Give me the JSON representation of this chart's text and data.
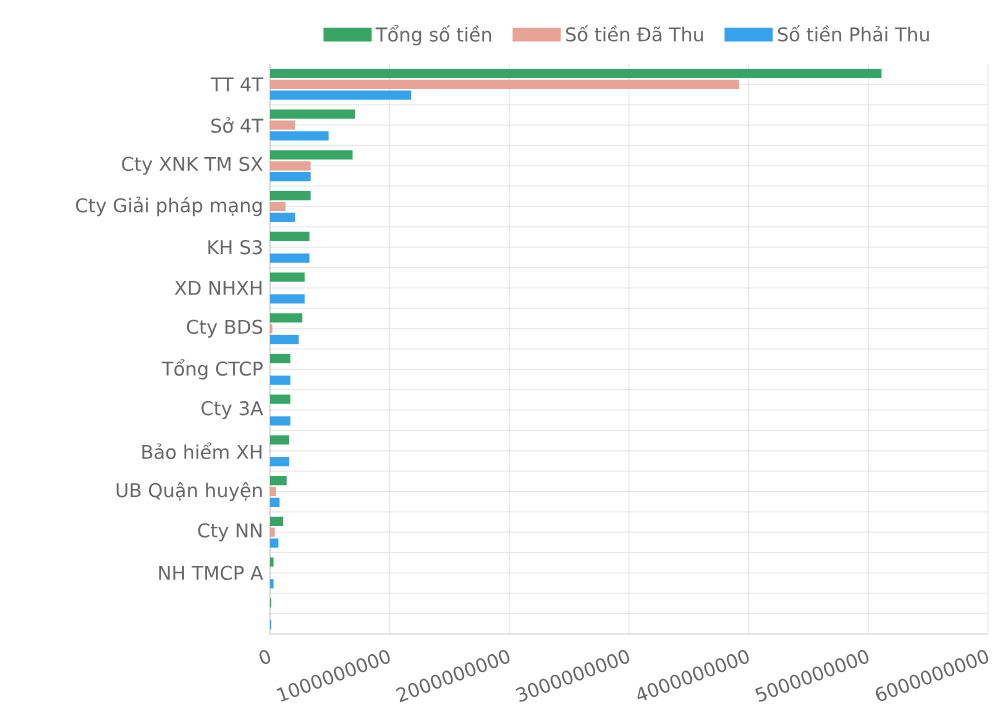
{
  "chart_data": {
    "type": "bar",
    "orientation": "horizontal",
    "categories": [
      "TT 4T",
      "Sở 4T",
      "Cty XNK TM SX",
      "Cty Giải pháp mạng",
      "KH S3",
      "XD NHXH",
      "Cty BDS",
      "Tổng CTCP",
      "Cty 3A",
      "Bảo hiểm XH",
      "UB Quận huyện",
      "Cty NN",
      "NH TMCP A",
      null
    ],
    "series": [
      {
        "name": "Tổng số tiền",
        "color": "#38a566",
        "values": [
          5110000000,
          710000000,
          690000000,
          340000000,
          330000000,
          290000000,
          270000000,
          170000000,
          170000000,
          160000000,
          140000000,
          110000000,
          30000000,
          10000000
        ]
      },
      {
        "name": "Số tiền Đã Thu",
        "color": "#e8a397",
        "values": [
          3920000000,
          210000000,
          340000000,
          130000000,
          0,
          0,
          20000000,
          0,
          0,
          0,
          50000000,
          40000000,
          0,
          0
        ]
      },
      {
        "name": "Số tiền Phải Thu",
        "color": "#36a2eb",
        "values": [
          1180000000,
          490000000,
          340000000,
          210000000,
          330000000,
          290000000,
          240000000,
          170000000,
          170000000,
          160000000,
          80000000,
          70000000,
          30000000,
          10000000
        ]
      }
    ],
    "xlim": [
      0,
      6000000000
    ],
    "xticks": [
      0,
      1000000000,
      2000000000,
      3000000000,
      4000000000,
      5000000000,
      6000000000
    ],
    "grid": true,
    "legend": "top"
  }
}
